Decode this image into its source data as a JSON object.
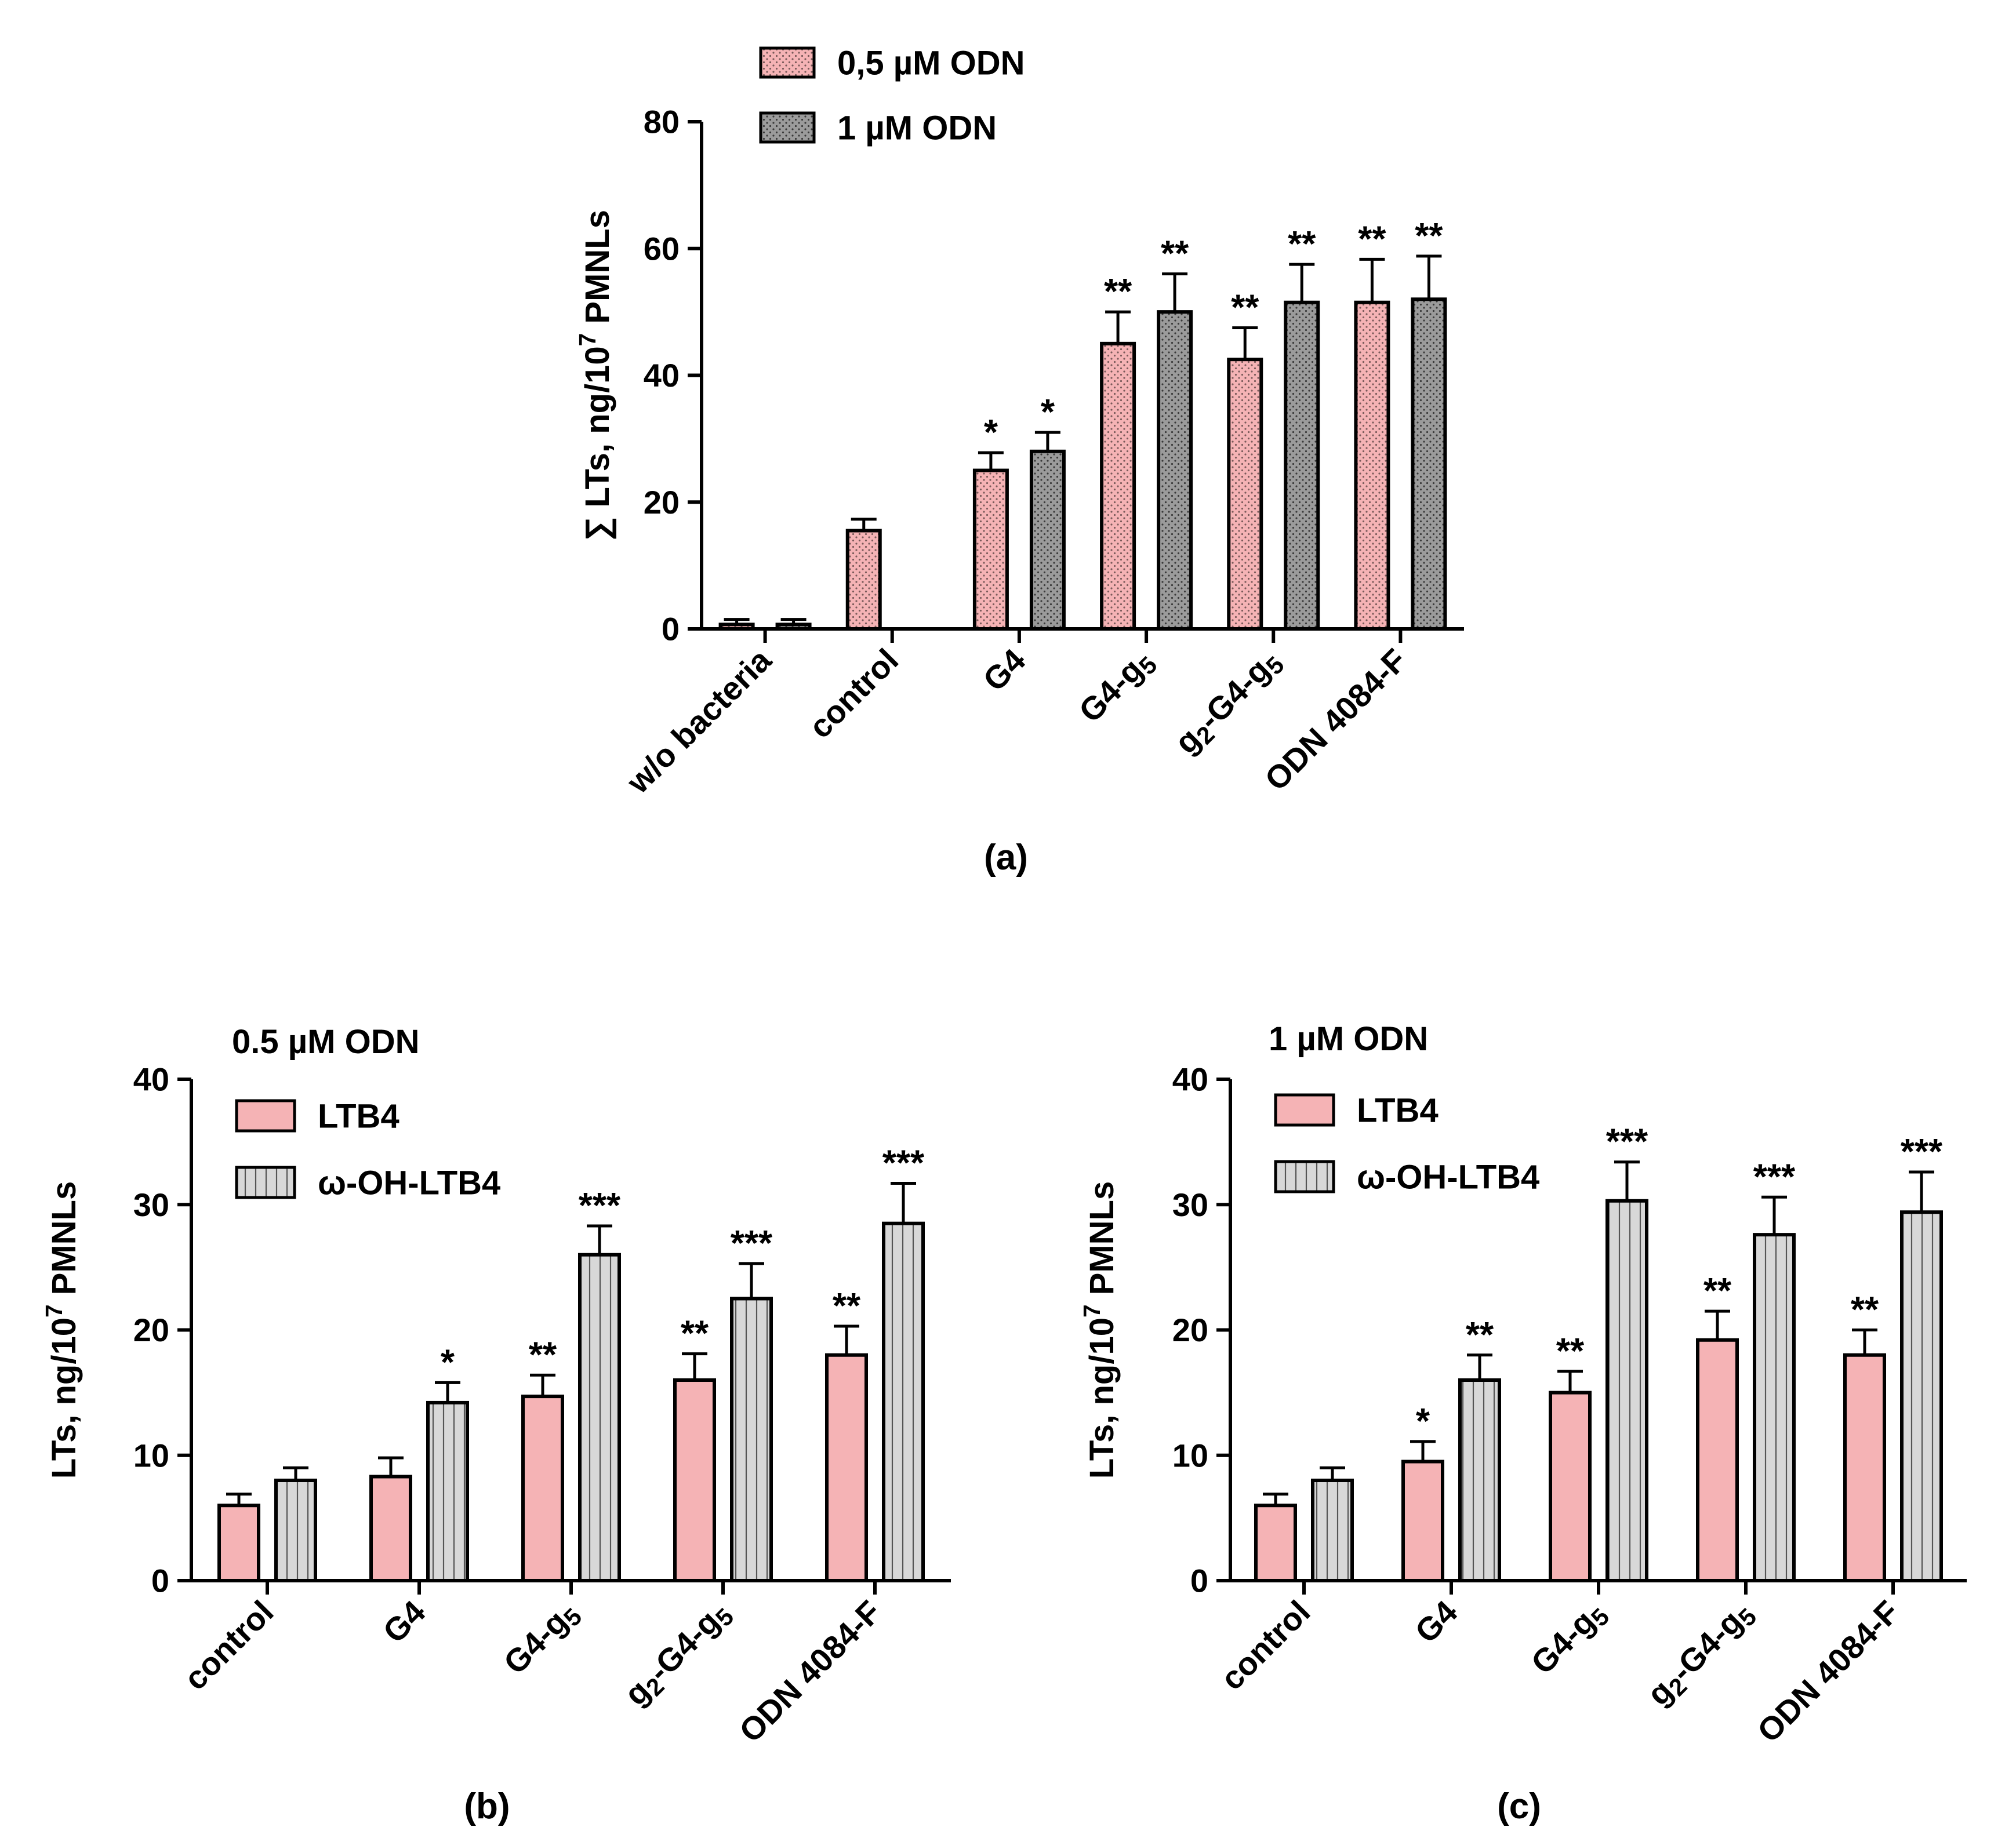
{
  "colors": {
    "pink": "#f5b3b5",
    "gray": "#9b9b9b",
    "light_gray": "#d8d8d8",
    "stroke": "#000000"
  },
  "chart_data": [
    {
      "type": "bar",
      "panel_label": "(a)",
      "title": "",
      "ylabel_prefix": "∑ LTs, ng/10",
      "ylabel_exponent": "7",
      "ylabel_suffix": " PMNLs",
      "ylim": [
        0,
        80
      ],
      "yticks": [
        "0",
        "20",
        "40",
        "60",
        "80"
      ],
      "legend_position": "top",
      "categories": [
        {
          "text": "w/o bacteria",
          "subs": []
        },
        {
          "text": "control",
          "subs": []
        },
        {
          "text": "G4",
          "subs": []
        },
        {
          "text": "G4-g5",
          "subs": [
            4
          ]
        },
        {
          "text": "g2-G4-g5",
          "subs": [
            1,
            7
          ]
        },
        {
          "text": "ODN 4084-F",
          "subs": []
        }
      ],
      "series": [
        {
          "name": "0,5 µM ODN",
          "color_key": "pink",
          "pattern": "dots",
          "values": [
            0.7,
            15.5,
            25,
            45,
            42.5,
            51.5
          ],
          "errors": [
            0.8,
            1.8,
            2.8,
            5.0,
            5.0,
            6.8
          ],
          "significance": [
            "",
            "",
            "*",
            "**",
            "**",
            "**"
          ]
        },
        {
          "name": "1 µM ODN",
          "color_key": "gray",
          "pattern": "dots",
          "values": [
            0.7,
            null,
            28,
            50,
            51.5,
            52
          ],
          "errors": [
            0.8,
            null,
            3.0,
            6.0,
            6.0,
            6.8
          ],
          "significance": [
            "",
            "",
            "*",
            "**",
            "**",
            "**"
          ]
        }
      ]
    },
    {
      "type": "bar",
      "panel_label": "(b)",
      "title": "0.5 µM ODN",
      "ylabel_prefix": "LTs, ng/10",
      "ylabel_exponent": "7",
      "ylabel_suffix": " PMNLs",
      "ylim": [
        0,
        40
      ],
      "yticks": [
        "0",
        "10",
        "20",
        "30",
        "40"
      ],
      "legend_position": "top-left",
      "categories": [
        {
          "text": "control",
          "subs": []
        },
        {
          "text": "G4",
          "subs": []
        },
        {
          "text": "G4-g5",
          "subs": [
            4
          ]
        },
        {
          "text": "g2-G4-g5",
          "subs": [
            1,
            7
          ]
        },
        {
          "text": "ODN 4084-F",
          "subs": []
        }
      ],
      "series": [
        {
          "name": "LTB4",
          "color_key": "pink",
          "pattern": "none",
          "values": [
            6,
            8.3,
            14.7,
            16,
            18
          ],
          "errors": [
            0.9,
            1.5,
            1.7,
            2.1,
            2.3
          ],
          "significance": [
            "",
            "",
            "**",
            "**",
            "**"
          ]
        },
        {
          "name": "ω-OH-LTB4",
          "color_key": "light_gray",
          "pattern": "vlines",
          "values": [
            8,
            14.2,
            26,
            22.5,
            28.5
          ],
          "errors": [
            1.0,
            1.6,
            2.3,
            2.8,
            3.2
          ],
          "significance": [
            "",
            "*",
            "***",
            "***",
            "***"
          ]
        }
      ]
    },
    {
      "type": "bar",
      "panel_label": "(c)",
      "title": "1 µM ODN",
      "ylabel_prefix": "LTs, ng/10",
      "ylabel_exponent": "7",
      "ylabel_suffix": " PMNLs",
      "ylim": [
        0,
        40
      ],
      "yticks": [
        "0",
        "10",
        "20",
        "30",
        "40"
      ],
      "legend_position": "top-left",
      "categories": [
        {
          "text": "control",
          "subs": []
        },
        {
          "text": "G4",
          "subs": []
        },
        {
          "text": "G4-g5",
          "subs": [
            4
          ]
        },
        {
          "text": "g2-G4-g5",
          "subs": [
            1,
            7
          ]
        },
        {
          "text": "ODN 4084-F",
          "subs": []
        }
      ],
      "series": [
        {
          "name": "LTB4",
          "color_key": "pink",
          "pattern": "none",
          "values": [
            6,
            9.5,
            15,
            19.2,
            18
          ],
          "errors": [
            0.9,
            1.6,
            1.7,
            2.3,
            2.0
          ],
          "significance": [
            "",
            "*",
            "**",
            "**",
            "**"
          ]
        },
        {
          "name": "ω-OH-LTB4",
          "color_key": "light_gray",
          "pattern": "vlines",
          "values": [
            8,
            16,
            30.3,
            27.6,
            29.4
          ],
          "errors": [
            1.0,
            2.0,
            3.1,
            3.0,
            3.2
          ],
          "significance": [
            "",
            "**",
            "***",
            "***",
            "***"
          ]
        }
      ]
    }
  ]
}
